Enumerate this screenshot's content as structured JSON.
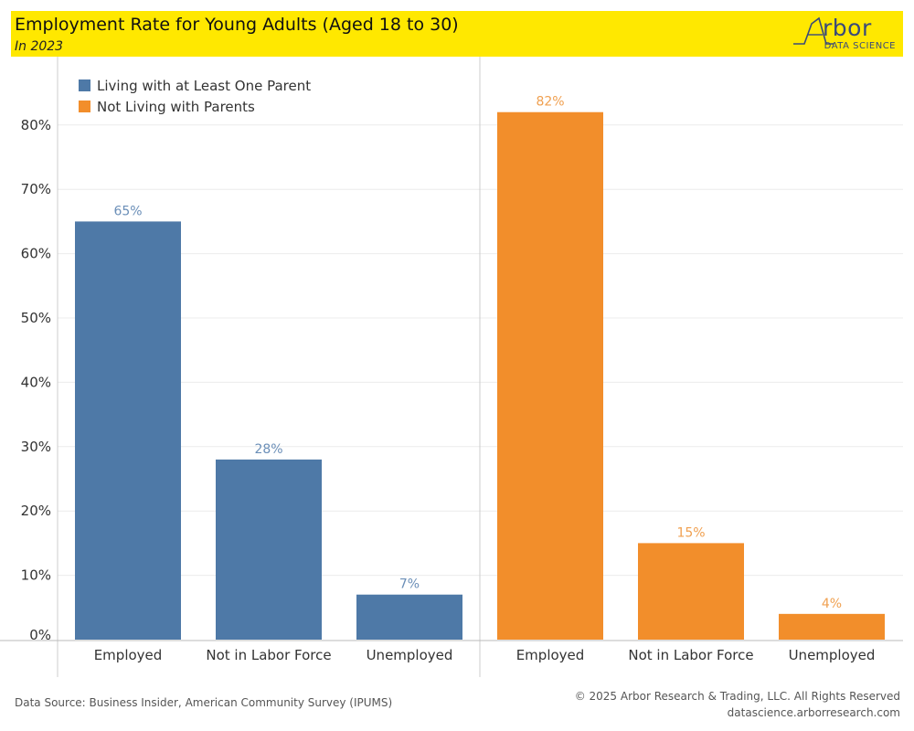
{
  "header": {
    "title": "Employment Rate for Young Adults (Aged 18 to 30)",
    "subtitle": "In 2023",
    "logo_word": "rbor",
    "logo_sub": "DATA SCIENCE"
  },
  "colors": {
    "header_bg": "#ffe800",
    "series_living_with_parent": "#4e79a7",
    "series_not_living": "#f28e2b",
    "label_living_with_parent": "#6b8fb8",
    "label_not_living": "#f0a050"
  },
  "chart_data": {
    "type": "bar",
    "categories": [
      "Employed",
      "Not in Labor Force",
      "Unemployed"
    ],
    "series": [
      {
        "name": "Living with at Least One Parent",
        "values": [
          65,
          28,
          7
        ],
        "labels": [
          "65%",
          "28%",
          "7%"
        ]
      },
      {
        "name": "Not Living with Parents",
        "values": [
          82,
          15,
          4
        ],
        "labels": [
          "82%",
          "15%",
          "4%"
        ]
      }
    ],
    "ylim": [
      0,
      85
    ],
    "yticks": [
      0,
      10,
      20,
      30,
      40,
      50,
      60,
      70,
      80
    ],
    "ytick_labels": [
      "0%",
      "10%",
      "20%",
      "30%",
      "40%",
      "50%",
      "60%",
      "70%",
      "80%"
    ],
    "grid": true,
    "legend": "top-left",
    "layout": "side-by-side panels"
  },
  "footer": {
    "source": "Data Source: Business Insider, American Community Survey (IPUMS)",
    "copyright": "© 2025 Arbor Research & Trading, LLC. All Rights Reserved",
    "url": "datascience.arborresearch.com"
  }
}
